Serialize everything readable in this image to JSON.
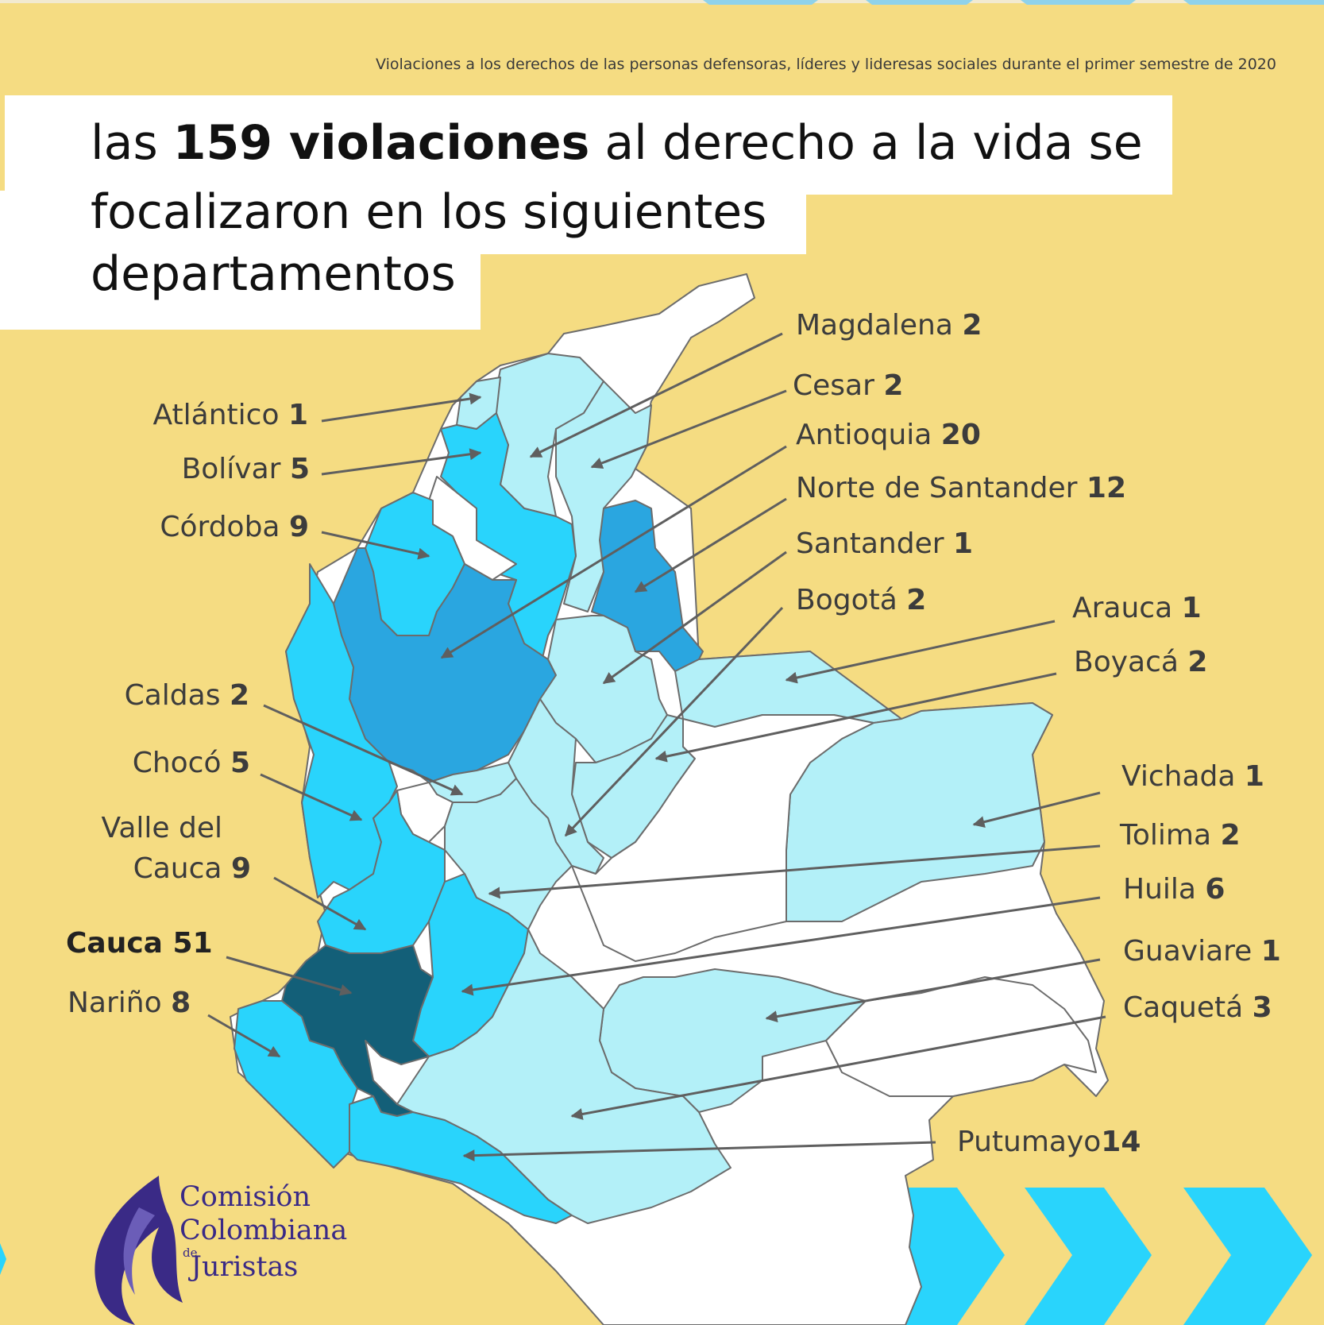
{
  "subtitle": "Violaciones a los derechos de las personas defensoras, líderes y lideresas sociales durante el primer semestre de 2020",
  "headline": {
    "line1_pre": "las ",
    "line1_bold": "159 violaciones",
    "line1_post": " al derecho a la vida se",
    "line2": "focalizaron en los siguientes",
    "line3": "departamentos"
  },
  "colors": {
    "background": "#f5dc82",
    "light": "#b3f0f8",
    "medium": "#29d4fc",
    "strong": "#2aa6e0",
    "darkest": "#135f78",
    "none": "#ffffff",
    "arrows": "#5f5f5f",
    "logo": "#3a2a86"
  },
  "departments": {
    "atlantico": {
      "name": "Atlántico",
      "count": "1"
    },
    "bolivar": {
      "name": "Bolívar",
      "count": "5"
    },
    "cordoba": {
      "name": "Córdoba",
      "count": "9"
    },
    "caldas": {
      "name": "Caldas",
      "count": "2"
    },
    "choco": {
      "name": "Chocó",
      "count": "5"
    },
    "valle": {
      "name_line1": "Valle del",
      "name_line2": "Cauca",
      "count": "9"
    },
    "cauca": {
      "name": "Cauca",
      "count": "51"
    },
    "narino": {
      "name": "Nariño",
      "count": "8"
    },
    "magdalena": {
      "name": "Magdalena",
      "count": "2"
    },
    "cesar": {
      "name": "Cesar",
      "count": "2"
    },
    "antioquia": {
      "name": "Antioquia",
      "count": "20"
    },
    "norte_santander": {
      "name": "Norte de Santander",
      "count": "12"
    },
    "santander": {
      "name": "Santander",
      "count": "1"
    },
    "bogota": {
      "name": "Bogotá",
      "count": "2"
    },
    "arauca": {
      "name": "Arauca",
      "count": "1"
    },
    "boyaca": {
      "name": "Boyacá",
      "count": "2"
    },
    "vichada": {
      "name": "Vichada",
      "count": "1"
    },
    "tolima": {
      "name": "Tolima",
      "count": "2"
    },
    "huila": {
      "name": "Huila",
      "count": "6"
    },
    "guaviare": {
      "name": "Guaviare",
      "count": "1"
    },
    "caqueta": {
      "name": "Caquetá",
      "count": "3"
    },
    "putumayo": {
      "name": "Putumayo",
      "count": "14"
    }
  },
  "logo": {
    "line1": "Comisión",
    "line2": "Colombiana",
    "de": "de",
    "line3": "Juristas"
  }
}
